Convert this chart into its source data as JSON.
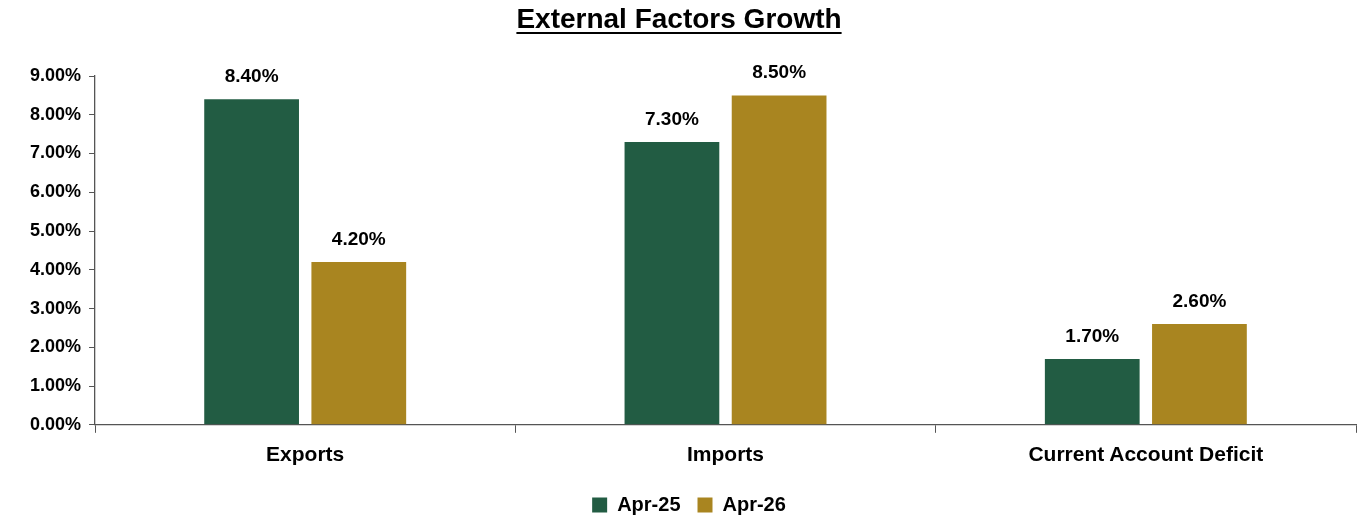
{
  "chart_data": {
    "type": "bar",
    "title": "External Factors Growth",
    "categories": [
      "Exports",
      "Imports",
      "Current Account Deficit"
    ],
    "series": [
      {
        "name": "Apr-25",
        "color": "#225c43",
        "values": [
          8.4,
          7.3,
          1.7
        ],
        "value_labels": [
          "8.40%",
          "7.30%",
          "1.70%"
        ]
      },
      {
        "name": "Apr-26",
        "color": "#a98520",
        "values": [
          4.2,
          8.5,
          2.6
        ],
        "value_labels": [
          "4.20%",
          "8.50%",
          "2.60%"
        ]
      }
    ],
    "ylim": [
      0,
      9
    ],
    "yticks": [
      {
        "value": 0,
        "label": "0.00%"
      },
      {
        "value": 1,
        "label": "1.00%"
      },
      {
        "value": 2,
        "label": "2.00%"
      },
      {
        "value": 3,
        "label": "3.00%"
      },
      {
        "value": 4,
        "label": "4.00%"
      },
      {
        "value": 5,
        "label": "5.00%"
      },
      {
        "value": 6,
        "label": "6.00%"
      },
      {
        "value": 7,
        "label": "7.00%"
      },
      {
        "value": 8,
        "label": "8.00%"
      },
      {
        "value": 9,
        "label": "9.00%"
      }
    ],
    "grid": false,
    "legend": "bottom"
  }
}
